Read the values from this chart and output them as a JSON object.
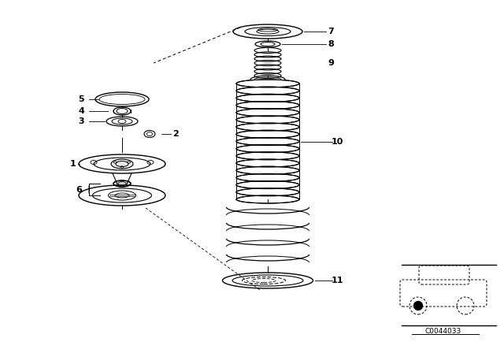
{
  "bg_color": "#ffffff",
  "line_color": "#000000",
  "figsize": [
    6.4,
    4.48
  ],
  "dpi": 100,
  "code": "C0044033"
}
